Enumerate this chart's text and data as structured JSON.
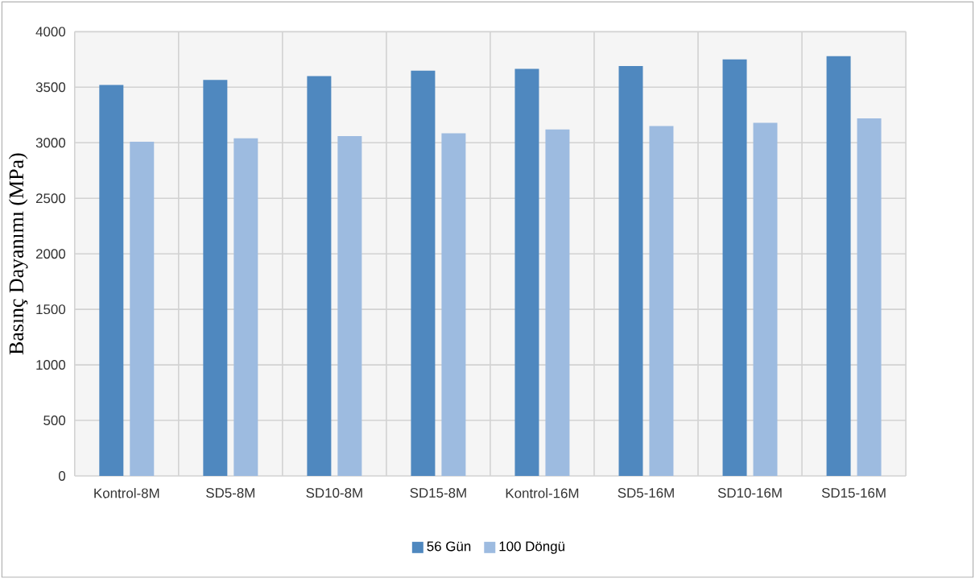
{
  "chart_data": {
    "type": "bar",
    "ylabel": "Basınç Dayanımı (MPa)",
    "categories": [
      "Kontrol-8M",
      "SD5-8M",
      "SD10-8M",
      "SD15-8M",
      "Kontrol-16M",
      "SD5-16M",
      "SD10-16M",
      "SD15-16M"
    ],
    "series": [
      {
        "name": "56 Gün",
        "color": "#4f88bf",
        "values": [
          3520,
          3565,
          3600,
          3650,
          3665,
          3690,
          3750,
          3780
        ]
      },
      {
        "name": "100 Döngü",
        "color": "#9dbbe0",
        "values": [
          3010,
          3040,
          3060,
          3085,
          3120,
          3150,
          3180,
          3220
        ]
      }
    ],
    "ylim": [
      0,
      4000
    ],
    "yticks": [
      0,
      500,
      1000,
      1500,
      2000,
      2500,
      3000,
      3500,
      4000
    ],
    "grid": true,
    "legend": "bottom"
  }
}
